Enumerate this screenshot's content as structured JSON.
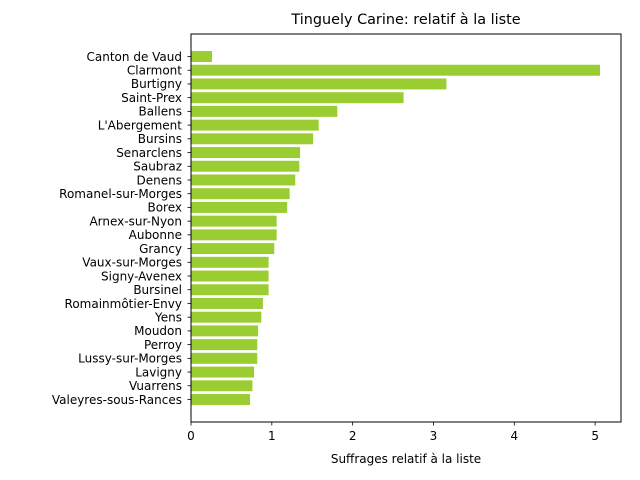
{
  "chart_data": {
    "type": "bar",
    "orientation": "horizontal",
    "title": "Tinguely Carine: relatif à la liste",
    "xlabel": "Suffrages relatif à la liste",
    "ylabel": "",
    "xlim": [
      0,
      5.32
    ],
    "xticks": [
      0,
      1,
      2,
      3,
      4,
      5
    ],
    "bar_color": "#9acd32",
    "grid": false,
    "categories": [
      "Canton de Vaud",
      "Clarmont",
      "Burtigny",
      "Saint-Prex",
      "Ballens",
      "L'Abergement",
      "Bursins",
      "Senarclens",
      "Saubraz",
      "Denens",
      "Romanel-sur-Morges",
      "Borex",
      "Arnex-sur-Nyon",
      "Aubonne",
      "Grancy",
      "Vaux-sur-Morges",
      "Signy-Avenex",
      "Bursinel",
      "Romainmôtier-Envy",
      "Yens",
      "Moudon",
      "Perroy",
      "Lussy-sur-Morges",
      "Lavigny",
      "Vuarrens",
      "Valeyres-sous-Rances"
    ],
    "values": [
      0.26,
      5.06,
      3.16,
      2.63,
      1.81,
      1.58,
      1.51,
      1.35,
      1.34,
      1.29,
      1.22,
      1.19,
      1.06,
      1.06,
      1.03,
      0.96,
      0.96,
      0.96,
      0.89,
      0.87,
      0.83,
      0.82,
      0.82,
      0.78,
      0.76,
      0.73
    ]
  }
}
